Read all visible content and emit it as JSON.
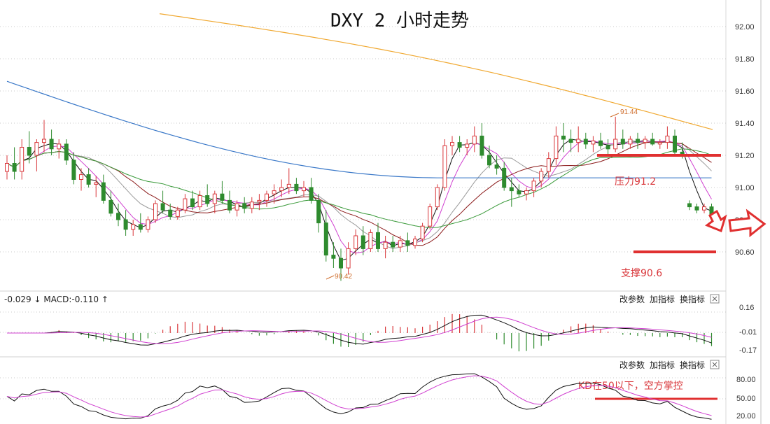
{
  "chart_data": {
    "type": "candlestick",
    "title": "DXY  2 小时走势",
    "price_axis": {
      "ticks": [
        "92.00",
        "91.80",
        "91.60",
        "91.40",
        "91.20",
        "91.00",
        "90.80",
        "90.60"
      ],
      "ylim": [
        90.4,
        92.12
      ]
    },
    "high_label": "91.44",
    "low_label": "90.42",
    "resistance_label": "压力91.2",
    "resistance_value": 91.2,
    "support_label": "支撑90.6",
    "support_value": 90.6,
    "candles": [
      [
        91.1,
        91.2,
        91.05,
        91.15
      ],
      [
        91.15,
        91.25,
        91.05,
        91.1
      ],
      [
        91.1,
        91.3,
        91.05,
        91.25
      ],
      [
        91.25,
        91.35,
        91.15,
        91.2
      ],
      [
        91.2,
        91.3,
        91.1,
        91.28
      ],
      [
        91.28,
        91.42,
        91.22,
        91.3
      ],
      [
        91.3,
        91.36,
        91.2,
        91.24
      ],
      [
        91.24,
        91.3,
        91.18,
        91.27
      ],
      [
        91.27,
        91.3,
        91.14,
        91.17
      ],
      [
        91.17,
        91.22,
        91.02,
        91.05
      ],
      [
        91.05,
        91.12,
        90.98,
        91.08
      ],
      [
        91.08,
        91.12,
        91.0,
        91.02
      ],
      [
        91.02,
        91.07,
        90.94,
        91.03
      ],
      [
        91.03,
        91.08,
        90.9,
        90.92
      ],
      [
        90.92,
        90.98,
        90.82,
        90.84
      ],
      [
        90.84,
        90.9,
        90.76,
        90.8
      ],
      [
        90.8,
        90.86,
        90.7,
        90.74
      ],
      [
        90.74,
        90.8,
        90.7,
        90.77
      ],
      [
        90.77,
        90.84,
        90.72,
        90.74
      ],
      [
        90.74,
        90.82,
        90.72,
        90.8
      ],
      [
        90.8,
        90.92,
        90.78,
        90.9
      ],
      [
        90.9,
        90.98,
        90.84,
        90.86
      ],
      [
        90.86,
        90.9,
        90.8,
        90.82
      ],
      [
        90.82,
        90.88,
        90.8,
        90.86
      ],
      [
        90.86,
        90.96,
        90.84,
        90.93
      ],
      [
        90.93,
        90.98,
        90.86,
        90.88
      ],
      [
        90.88,
        90.98,
        90.86,
        90.95
      ],
      [
        90.95,
        91.02,
        90.88,
        90.9
      ],
      [
        90.9,
        90.98,
        90.84,
        90.96
      ],
      [
        90.96,
        91.04,
        90.9,
        90.92
      ],
      [
        90.92,
        90.98,
        90.84,
        90.86
      ],
      [
        90.86,
        90.92,
        90.82,
        90.9
      ],
      [
        90.9,
        90.94,
        90.84,
        90.87
      ],
      [
        90.87,
        90.94,
        90.84,
        90.91
      ],
      [
        90.91,
        90.96,
        90.86,
        90.92
      ],
      [
        90.92,
        90.98,
        90.88,
        90.96
      ],
      [
        90.96,
        91.02,
        90.9,
        90.98
      ],
      [
        90.98,
        91.05,
        90.94,
        91.0
      ],
      [
        91.0,
        91.12,
        90.96,
        91.02
      ],
      [
        91.02,
        91.06,
        90.96,
        90.98
      ],
      [
        90.98,
        91.04,
        90.94,
        91.0
      ],
      [
        91.0,
        91.06,
        90.9,
        90.92
      ],
      [
        90.92,
        90.96,
        90.72,
        90.78
      ],
      [
        90.78,
        90.86,
        90.54,
        90.58
      ],
      [
        90.58,
        90.66,
        90.5,
        90.56
      ],
      [
        90.56,
        90.62,
        90.42,
        90.5
      ],
      [
        90.5,
        90.66,
        90.46,
        90.62
      ],
      [
        90.62,
        90.74,
        90.58,
        90.7
      ],
      [
        90.7,
        90.76,
        90.58,
        90.62
      ],
      [
        90.62,
        90.74,
        90.6,
        90.72
      ],
      [
        90.72,
        90.78,
        90.6,
        90.62
      ],
      [
        90.62,
        90.7,
        90.56,
        90.66
      ],
      [
        90.66,
        90.7,
        90.6,
        90.63
      ],
      [
        90.63,
        90.7,
        90.6,
        90.67
      ],
      [
        90.67,
        90.72,
        90.6,
        90.64
      ],
      [
        90.64,
        90.7,
        90.62,
        90.68
      ],
      [
        90.68,
        90.78,
        90.66,
        90.76
      ],
      [
        90.76,
        90.9,
        90.74,
        90.88
      ],
      [
        90.88,
        91.02,
        90.86,
        91.0
      ],
      [
        91.0,
        91.3,
        90.98,
        91.26
      ],
      [
        91.26,
        91.32,
        91.2,
        91.28
      ],
      [
        91.28,
        91.32,
        91.22,
        91.25
      ],
      [
        91.25,
        91.3,
        91.2,
        91.27
      ],
      [
        91.27,
        91.38,
        91.22,
        91.32
      ],
      [
        91.32,
        91.4,
        91.18,
        91.2
      ],
      [
        91.2,
        91.26,
        91.12,
        91.14
      ],
      [
        91.14,
        91.2,
        91.08,
        91.12
      ],
      [
        91.12,
        91.16,
        90.98,
        91.0
      ],
      [
        91.0,
        91.06,
        90.88,
        90.98
      ],
      [
        90.98,
        91.02,
        90.94,
        90.96
      ],
      [
        90.96,
        91.0,
        90.92,
        90.98
      ],
      [
        90.98,
        91.06,
        90.94,
        91.04
      ],
      [
        91.04,
        91.12,
        91.0,
        91.1
      ],
      [
        91.1,
        91.22,
        91.06,
        91.18
      ],
      [
        91.18,
        91.38,
        91.14,
        91.32
      ],
      [
        91.32,
        91.4,
        91.22,
        91.3
      ],
      [
        91.3,
        91.36,
        91.22,
        91.28
      ],
      [
        91.28,
        91.38,
        91.22,
        91.3
      ],
      [
        91.3,
        91.34,
        91.24,
        91.27
      ],
      [
        91.27,
        91.32,
        91.22,
        91.29
      ],
      [
        91.29,
        91.34,
        91.24,
        91.26
      ],
      [
        91.26,
        91.3,
        91.2,
        91.24
      ],
      [
        91.24,
        91.44,
        91.22,
        91.3
      ],
      [
        91.3,
        91.36,
        91.24,
        91.27
      ],
      [
        91.27,
        91.32,
        91.24,
        91.3
      ],
      [
        91.3,
        91.34,
        91.24,
        91.28
      ],
      [
        91.28,
        91.32,
        91.24,
        91.3
      ],
      [
        91.3,
        91.34,
        91.26,
        91.27
      ],
      [
        91.27,
        91.3,
        91.24,
        91.28
      ],
      [
        91.28,
        91.38,
        91.24,
        91.32
      ],
      [
        91.32,
        91.36,
        91.2,
        91.22
      ],
      [
        91.22,
        91.28,
        91.18,
        91.2
      ],
      [
        90.9,
        90.92,
        90.86,
        90.88
      ],
      [
        90.88,
        90.9,
        90.84,
        90.86
      ],
      [
        90.86,
        90.9,
        90.84,
        90.88
      ],
      [
        90.88,
        90.9,
        90.8,
        90.82
      ]
    ],
    "macd_panel": {
      "readout": "-0.029 ↓ MACD:-0.110 ↑",
      "ticks": [
        "0.16",
        "-0.01",
        "-0.17"
      ],
      "buttons": [
        "改参数",
        "加指标",
        "换指标"
      ]
    },
    "kd_panel": {
      "ticks": [
        "80.00",
        "50.00",
        "20.00"
      ],
      "annotation": "KD在50以下，空方掌控",
      "buttons": [
        "改参数",
        "加指标",
        "换指标"
      ]
    },
    "colors": {
      "up": "#d9373b",
      "down": "#2e8b2e",
      "ma_orange": "#f0a830",
      "ma_blue": "#3a78c8",
      "ma_green": "#3a9a3a",
      "ma_black": "#111111",
      "ma_magenta": "#d040d0",
      "ma_darkred": "#8b1a1a",
      "ma_gray": "#999999",
      "annotation": "#e03030"
    }
  }
}
